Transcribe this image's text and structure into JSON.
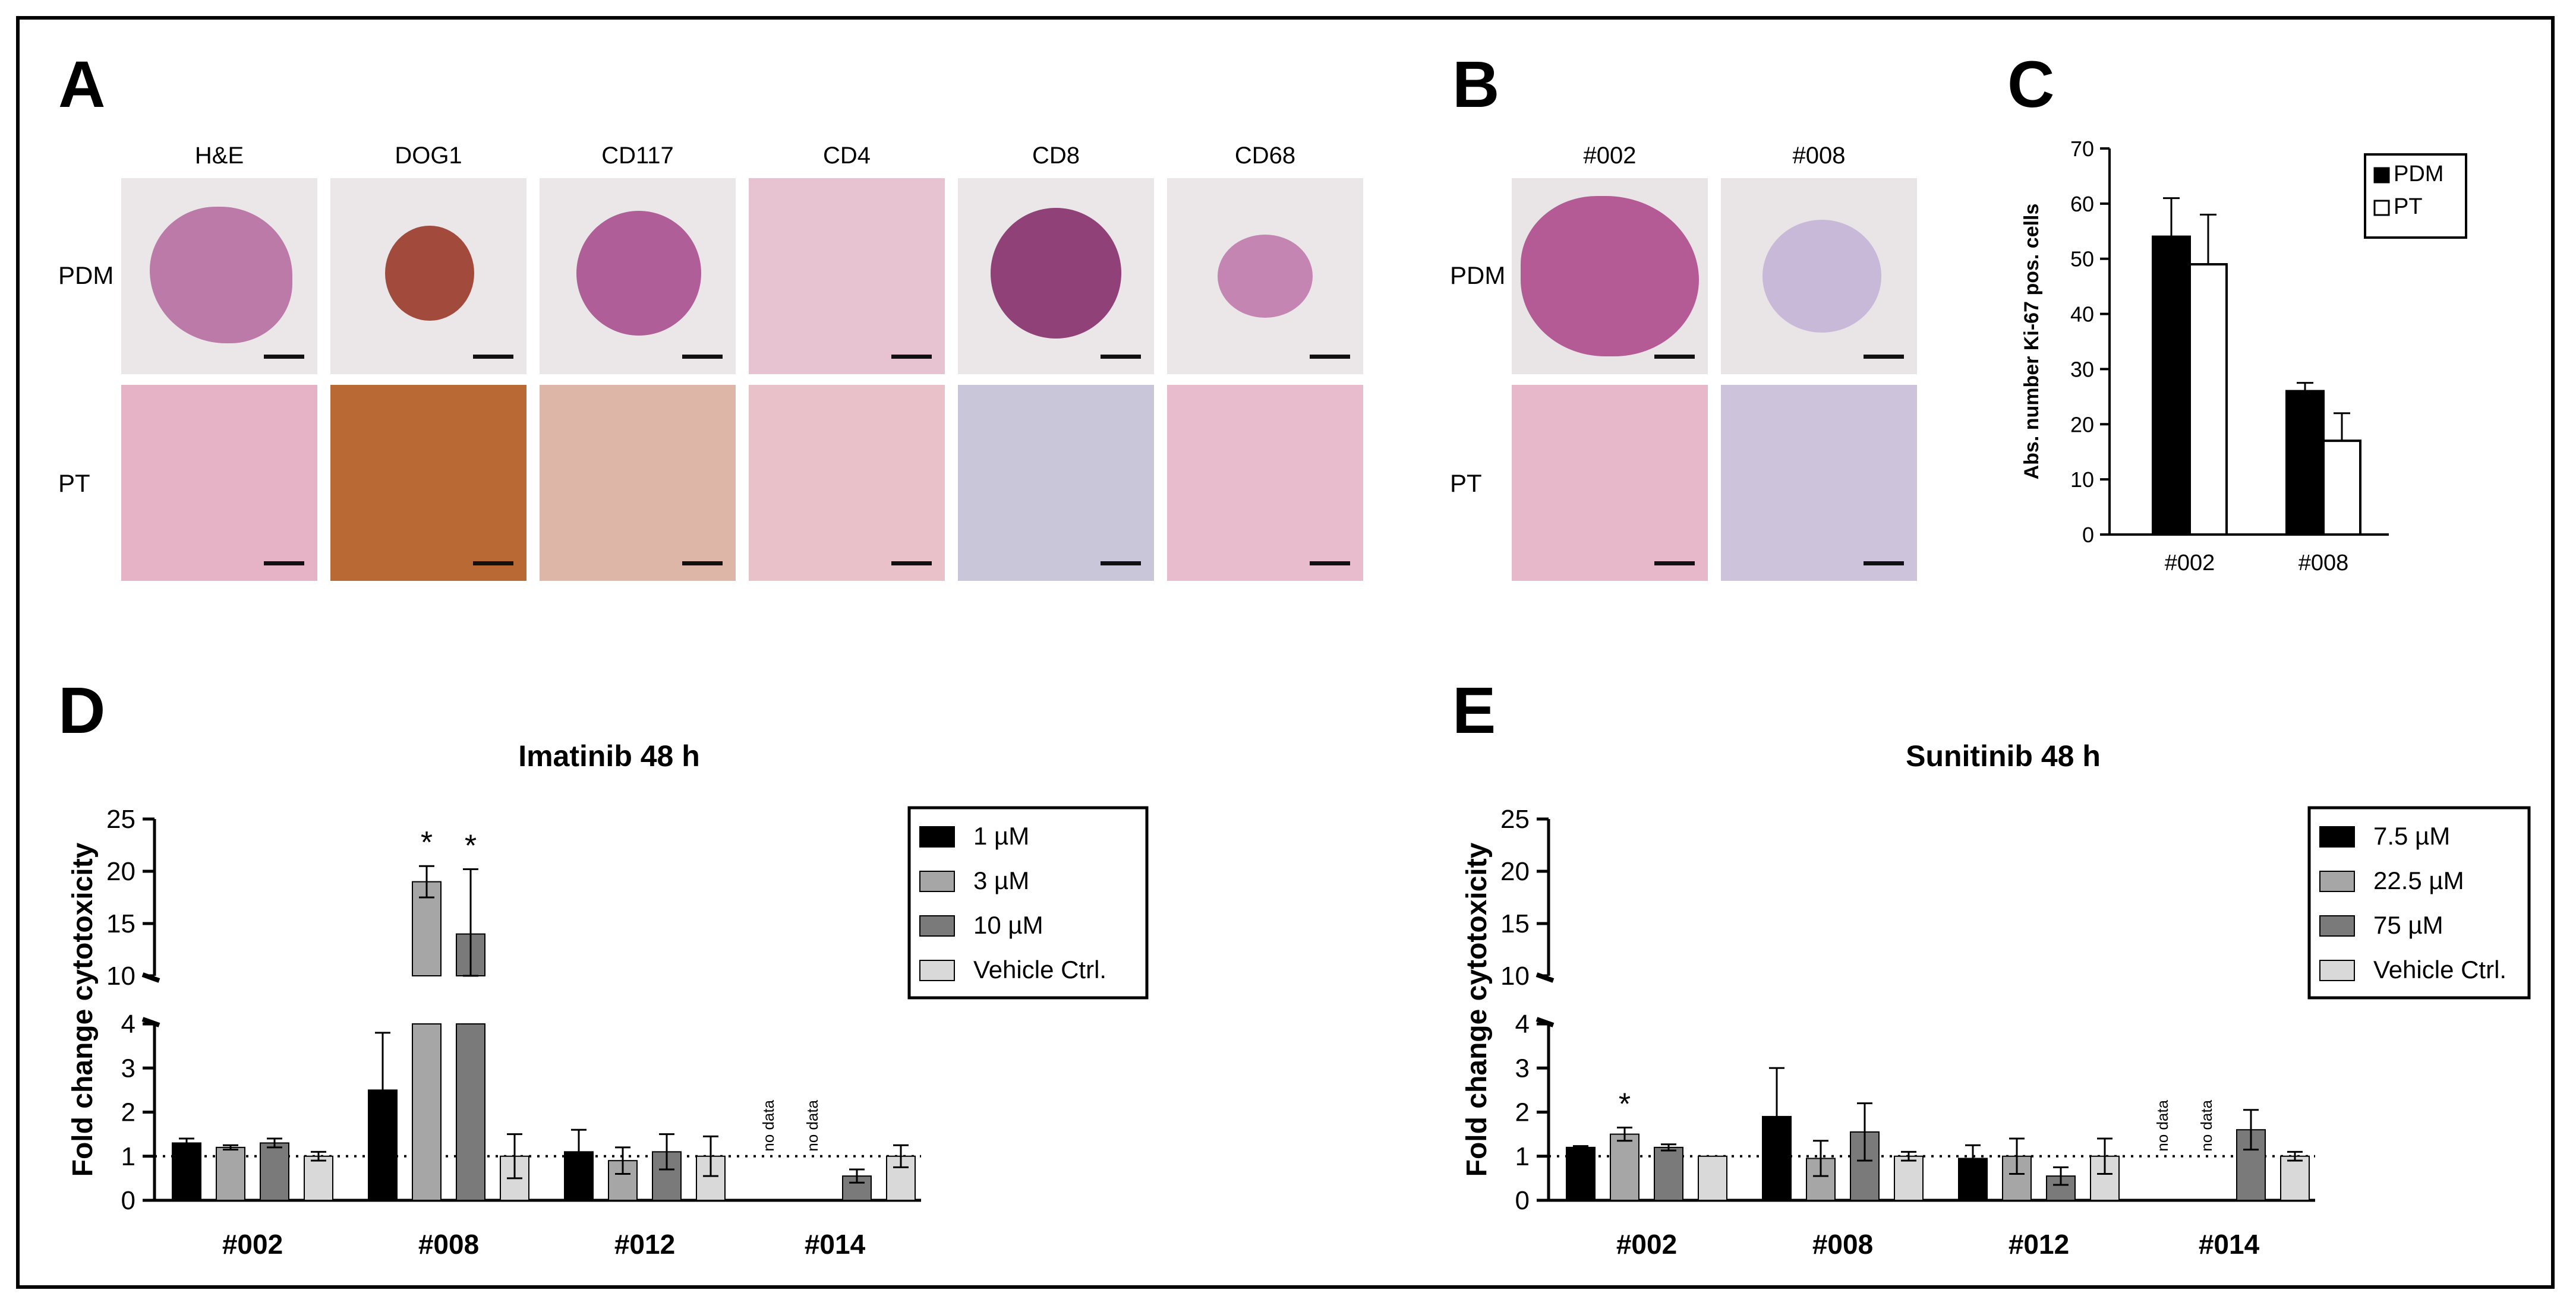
{
  "panels": {
    "A": {
      "letter": "A",
      "columns": [
        "H&E",
        "DOG1",
        "CD117",
        "CD4",
        "CD8",
        "CD68"
      ],
      "rows": [
        "PDM",
        "PT"
      ]
    },
    "B": {
      "letter": "B",
      "columns": [
        "#002",
        "#008"
      ],
      "rows": [
        "PDM",
        "PT"
      ]
    },
    "C": {
      "letter": "C"
    },
    "D": {
      "letter": "D"
    },
    "E": {
      "letter": "E"
    }
  },
  "chart_data": [
    {
      "id": "C",
      "type": "bar",
      "title": "",
      "ylabel": "Abs. number Ki-67 pos. cells",
      "xlabel": "",
      "ylim": [
        0,
        70
      ],
      "yticks": [
        "0",
        "10",
        "20",
        "30",
        "40",
        "50",
        "60",
        "70"
      ],
      "categories": [
        "#002",
        "#008"
      ],
      "legend_position": "top-right",
      "series": [
        {
          "name": "PDM",
          "color": "#000000",
          "values": [
            54,
            26
          ],
          "errors": [
            7,
            1.5
          ]
        },
        {
          "name": "PT",
          "color": "#ffffff",
          "values": [
            49,
            17
          ],
          "errors": [
            9,
            5
          ]
        }
      ]
    },
    {
      "id": "D",
      "type": "bar",
      "title": "Imatinib 48 h",
      "ylabel": "Fold change cytotoxicity",
      "xlabel": "",
      "axis_break": true,
      "ylim_lower": [
        0,
        4
      ],
      "ylim_upper": [
        10,
        25
      ],
      "yticks_lower": [
        "0",
        "1",
        "2",
        "3",
        "4"
      ],
      "yticks_upper": [
        "10",
        "15",
        "20",
        "25"
      ],
      "reference_line": 1,
      "categories": [
        "#002",
        "#008",
        "#012",
        "#014"
      ],
      "legend_position": "top-right",
      "series": [
        {
          "name": "1 µM",
          "color": "#000000",
          "values": [
            1.3,
            2.5,
            1.1,
            null
          ],
          "errors": [
            0.1,
            1.3,
            0.5,
            null
          ]
        },
        {
          "name": "3 µM",
          "color": "#a6a6a6",
          "values": [
            1.2,
            19,
            0.9,
            null
          ],
          "errors": [
            0.05,
            1.5,
            0.3,
            null
          ]
        },
        {
          "name": "10 µM",
          "color": "#7a7a7a",
          "values": [
            1.3,
            14,
            1.1,
            0.55
          ],
          "errors": [
            0.1,
            6.2,
            0.4,
            0.15
          ]
        },
        {
          "name": "Vehicle Ctrl.",
          "color": "#d9d9d9",
          "values": [
            1.0,
            1.0,
            1.0,
            1.0
          ],
          "errors": [
            0.1,
            0.5,
            0.45,
            0.25
          ]
        }
      ],
      "annotations": [
        {
          "text": "*",
          "category": "#008",
          "series": "3 µM"
        },
        {
          "text": "*",
          "category": "#008",
          "series": "10 µM"
        },
        {
          "text": "no data",
          "category": "#014",
          "series": "1 µM"
        },
        {
          "text": "no data",
          "category": "#014",
          "series": "3 µM"
        }
      ]
    },
    {
      "id": "E",
      "type": "bar",
      "title": "Sunitinib 48 h",
      "ylabel": "Fold change cytotoxicity",
      "xlabel": "",
      "axis_break": true,
      "ylim_lower": [
        0,
        4
      ],
      "ylim_upper": [
        10,
        25
      ],
      "yticks_lower": [
        "0",
        "1",
        "2",
        "3",
        "4"
      ],
      "yticks_upper": [
        "10",
        "15",
        "20",
        "25"
      ],
      "reference_line": 1,
      "categories": [
        "#002",
        "#008",
        "#012",
        "#014"
      ],
      "legend_position": "top-right",
      "series": [
        {
          "name": "7.5 µM",
          "color": "#000000",
          "values": [
            1.2,
            1.9,
            0.95,
            null
          ],
          "errors": [
            0.03,
            1.1,
            0.3,
            null
          ]
        },
        {
          "name": "22.5 µM",
          "color": "#a6a6a6",
          "values": [
            1.5,
            0.95,
            1.0,
            null
          ],
          "errors": [
            0.15,
            0.4,
            0.4,
            null
          ]
        },
        {
          "name": "75 µM",
          "color": "#7a7a7a",
          "values": [
            1.2,
            1.55,
            0.55,
            1.6
          ],
          "errors": [
            0.07,
            0.65,
            0.2,
            0.45
          ]
        },
        {
          "name": "Vehicle Ctrl.",
          "color": "#d9d9d9",
          "values": [
            1.0,
            1.0,
            1.0,
            1.0
          ],
          "errors": [
            0.0,
            0.1,
            0.4,
            0.1
          ]
        }
      ],
      "annotations": [
        {
          "text": "*",
          "category": "#002",
          "series": "22.5 µM"
        },
        {
          "text": "no data",
          "category": "#014",
          "series": "7.5 µM"
        },
        {
          "text": "no data",
          "category": "#014",
          "series": "22.5 µM"
        }
      ]
    }
  ]
}
